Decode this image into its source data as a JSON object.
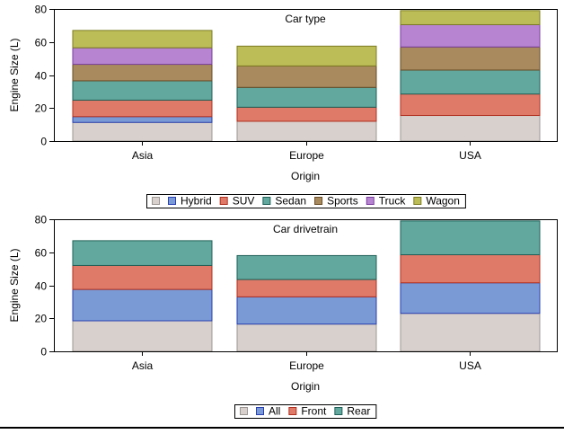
{
  "chart_data": [
    {
      "type": "bar",
      "stacked": true,
      "title": "Car type",
      "xlabel": "Origin",
      "ylabel": "Engine Size (L)",
      "categories": [
        "Asia",
        "Europe",
        "USA"
      ],
      "ylim": [
        0,
        80
      ],
      "yticks": [
        0,
        20,
        40,
        60,
        80
      ],
      "legend": {
        "placement": "bottom-center"
      },
      "series": [
        {
          "name": "",
          "color": "#d8d0cc",
          "edge": "#9c9794",
          "values": [
            11.3,
            12,
            15.5
          ]
        },
        {
          "name": "Hybrid",
          "color": "#7a9ad6",
          "edge": "#2a3fb0",
          "values": [
            3.5,
            0,
            0
          ]
        },
        {
          "name": "SUV",
          "color": "#e07a68",
          "edge": "#b03020",
          "values": [
            10,
            8.5,
            13
          ]
        },
        {
          "name": "Sedan",
          "color": "#62a89e",
          "edge": "#1f6058",
          "values": [
            11.7,
            12,
            14.5
          ]
        },
        {
          "name": "Sports",
          "color": "#a88a5e",
          "edge": "#6a4c26",
          "values": [
            10,
            13,
            14
          ]
        },
        {
          "name": "Truck",
          "color": "#b784d2",
          "edge": "#7a3e9c",
          "values": [
            10,
            0,
            13.5
          ]
        },
        {
          "name": "Wagon",
          "color": "#bdbd58",
          "edge": "#7c7c22",
          "values": [
            10.5,
            12,
            8.5
          ]
        }
      ]
    },
    {
      "type": "bar",
      "stacked": true,
      "title": "Car drivetrain",
      "xlabel": "Origin",
      "ylabel": "Engine Size (L)",
      "categories": [
        "Asia",
        "Europe",
        "USA"
      ],
      "ylim": [
        0,
        80
      ],
      "yticks": [
        0,
        20,
        40,
        60,
        80
      ],
      "legend": {
        "placement": "bottom-center"
      },
      "series": [
        {
          "name": "",
          "color": "#d8d0cc",
          "edge": "#9c9794",
          "values": [
            18.5,
            16.5,
            23
          ]
        },
        {
          "name": "All",
          "color": "#7a9ad6",
          "edge": "#2a3fb0",
          "values": [
            19,
            16.5,
            18.5
          ]
        },
        {
          "name": "Front",
          "color": "#e07a68",
          "edge": "#b03020",
          "values": [
            14.5,
            10.5,
            17
          ]
        },
        {
          "name": "Rear",
          "color": "#62a89e",
          "edge": "#1f6058",
          "values": [
            15,
            14.5,
            20.5
          ]
        }
      ]
    }
  ]
}
